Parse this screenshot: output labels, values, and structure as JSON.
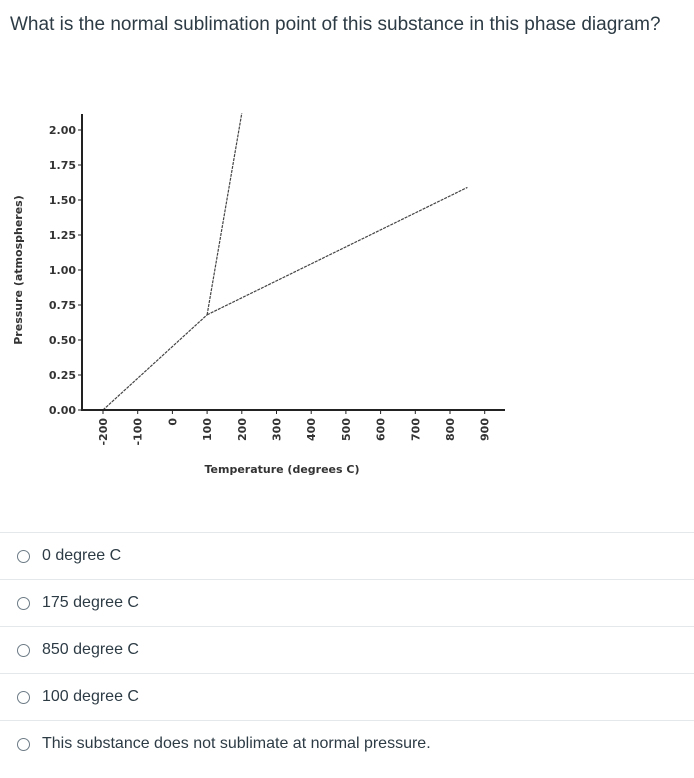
{
  "question": {
    "text": "What is the normal sublimation point of this substance in this phase diagram?"
  },
  "chart_data": {
    "type": "line",
    "title": "",
    "xlabel": "Temperature (degrees C)",
    "ylabel": "Pressure (atmospheres)",
    "x_ticks": [
      "-200",
      "-100",
      "0",
      "100",
      "200",
      "300",
      "400",
      "500",
      "600",
      "700",
      "800",
      "900"
    ],
    "y_ticks": [
      "0.00",
      "0.25",
      "0.50",
      "0.75",
      "1.00",
      "1.25",
      "1.50",
      "1.75",
      "2.00"
    ],
    "xlim": [
      -200,
      900
    ],
    "ylim": [
      0,
      2
    ],
    "grid": false,
    "series": [
      {
        "points": [
          [
            -200,
            0.0
          ],
          [
            100,
            0.68
          ]
        ]
      },
      {
        "points": [
          [
            100,
            0.68
          ],
          [
            200,
            2.12
          ]
        ]
      },
      {
        "points": [
          [
            100,
            0.68
          ],
          [
            850,
            1.59
          ]
        ]
      }
    ],
    "line_color": "#444444"
  },
  "answers": [
    {
      "label": "0 degree C"
    },
    {
      "label": "175 degree C"
    },
    {
      "label": "850 degree C"
    },
    {
      "label": "100 degree C"
    },
    {
      "label": "This substance does not sublimate at normal pressure."
    }
  ]
}
